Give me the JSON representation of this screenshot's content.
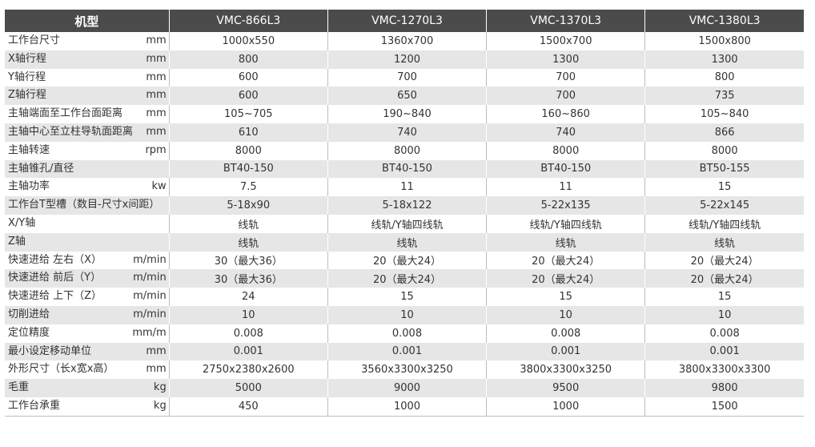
{
  "header": {
    "first": "机型",
    "models": [
      "VMC-866L3",
      "VMC-1270L3",
      "VMC-1370L3",
      "VMC-1380L3"
    ]
  },
  "rows": [
    {
      "label": "工作台尺寸",
      "unit": "mm",
      "values": [
        "1000x550",
        "1360x700",
        "1500x700",
        "1500x800"
      ]
    },
    {
      "label": "X轴行程",
      "unit": "mm",
      "values": [
        "800",
        "1200",
        "1300",
        "1300"
      ]
    },
    {
      "label": "Y轴行程",
      "unit": "mm",
      "values": [
        "600",
        "700",
        "700",
        "800"
      ]
    },
    {
      "label": "Z轴行程",
      "unit": "mm",
      "values": [
        "600",
        "650",
        "700",
        "735"
      ]
    },
    {
      "label": "主轴端面至工作台面距离",
      "unit": "mm",
      "values": [
        "105~705",
        "190~840",
        "160~860",
        "105~840"
      ]
    },
    {
      "label": "主轴中心至立柱导轨面距离",
      "unit": "mm",
      "values": [
        "610",
        "740",
        "740",
        "866"
      ]
    },
    {
      "label": "主轴转速",
      "unit": "rpm",
      "values": [
        "8000",
        "8000",
        "8000",
        "8000"
      ]
    },
    {
      "label": "主轴锥孔/直径",
      "unit": "",
      "values": [
        "BT40-150",
        "BT40-150",
        "BT40-150",
        "BT50-155"
      ]
    },
    {
      "label": "主轴功率",
      "unit": "kw",
      "values": [
        "7.5",
        "11",
        "11",
        "15"
      ]
    },
    {
      "label": "工作台T型槽（数目-尺寸x间距）",
      "unit": "",
      "values": [
        "5-18x90",
        "5-18x122",
        "5-22x135",
        "5-22x145"
      ]
    },
    {
      "label": "X/Y轴",
      "unit": "",
      "values": [
        "线轨",
        "线轨/Y轴四线轨",
        "线轨/Y轴四线轨",
        "线轨/Y轴四线轨"
      ]
    },
    {
      "label": "Z轴",
      "unit": "",
      "values": [
        "线轨",
        "线轨",
        "线轨",
        "线轨"
      ]
    },
    {
      "label": "快速进给 左右（X）",
      "unit": "m/min",
      "values": [
        "30（最大36）",
        "20（最大24）",
        "20（最大24）",
        "20（最大24）"
      ]
    },
    {
      "label": "快速进给 前后（Y）",
      "unit": "m/min",
      "values": [
        "30（最大36）",
        "20（最大24）",
        "20（最大24）",
        "20（最大24）"
      ]
    },
    {
      "label": "快速进给 上下（Z）",
      "unit": "m/min",
      "values": [
        "24",
        "15",
        "15",
        "15"
      ]
    },
    {
      "label": "切削进给",
      "unit": "m/min",
      "values": [
        "10",
        "10",
        "10",
        "10"
      ]
    },
    {
      "label": "定位精度",
      "unit": "mm/m",
      "values": [
        "0.008",
        "0.008",
        "0.008",
        "0.008"
      ]
    },
    {
      "label": "最小设定移动单位",
      "unit": "mm",
      "values": [
        "0.001",
        "0.001",
        "0.001",
        "0.001"
      ]
    },
    {
      "label": "外形尺寸（长x宽x高）",
      "unit": "mm",
      "values": [
        "2750x2380x2600",
        "3560x3300x3250",
        "3800x3300x3250",
        "3800x3300x3300"
      ]
    },
    {
      "label": "毛重",
      "unit": "kg",
      "values": [
        "5000",
        "9000",
        "9500",
        "9800"
      ]
    },
    {
      "label": "工作台承重",
      "unit": "kg",
      "values": [
        "450",
        "1000",
        "1000",
        "1500"
      ]
    }
  ]
}
